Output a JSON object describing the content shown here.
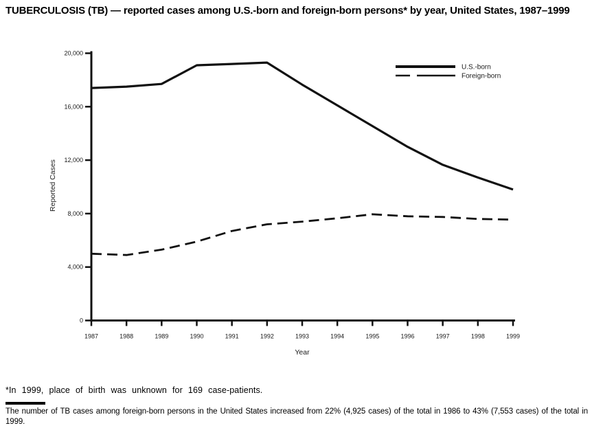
{
  "title": "TUBERCULOSIS (TB) — reported cases among U.S.-born and foreign-born persons* by year, United States, 1987–1999",
  "chart_data": {
    "type": "line",
    "x": [
      1987,
      1988,
      1989,
      1990,
      1991,
      1992,
      1993,
      1994,
      1995,
      1996,
      1997,
      1998,
      1999
    ],
    "xtick_labels": [
      "1987",
      "1988",
      "1989",
      "1990",
      "1991",
      "1992",
      "1993",
      "1994",
      "1995",
      "1996",
      "1997",
      "1998",
      "1999"
    ],
    "series": [
      {
        "name": "U.S.-born",
        "style": "solid",
        "values": [
          17400,
          17500,
          17700,
          19100,
          19200,
          19300,
          17650,
          16100,
          14550,
          13000,
          11650,
          10700,
          9800
        ]
      },
      {
        "name": "Foreign-born",
        "style": "dashed",
        "values": [
          5000,
          4900,
          5300,
          5900,
          6700,
          7200,
          7400,
          7650,
          7950,
          7800,
          7750,
          7600,
          7550
        ]
      }
    ],
    "xlabel": "Year",
    "ylabel": "Reported Cases",
    "ylim": [
      0,
      20000
    ],
    "yticks": [
      0,
      4000,
      8000,
      12000,
      16000,
      20000
    ],
    "ytick_labels": [
      "0",
      "4,000",
      "8,000",
      "12,000",
      "16,000",
      "20,000"
    ],
    "legend_position": "top-right",
    "grid": false,
    "line_color": "#111111"
  },
  "footnote": "*In 1999, place of birth was unknown for 169 case-patients.",
  "caption": "The number of TB cases among foreign-born persons in the United States increased from 22% (4,925 cases) of the total in 1986 to 43% (7,553 cases) of the total in 1999."
}
